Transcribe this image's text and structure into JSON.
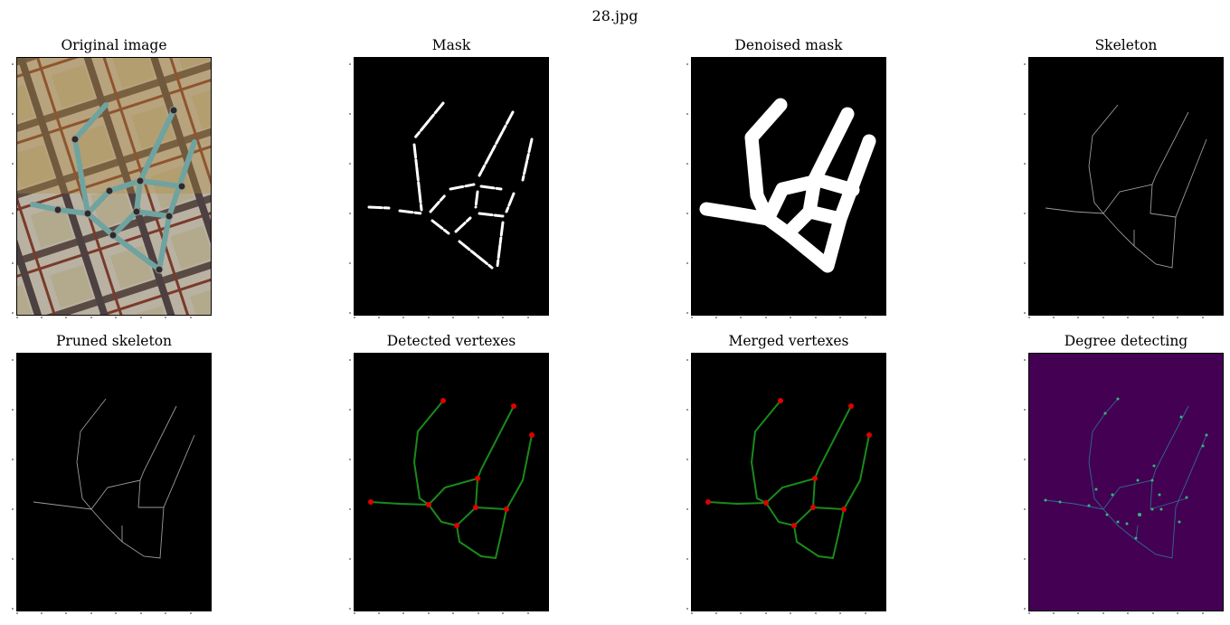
{
  "figure": {
    "title": "28.jpg",
    "panels": [
      {
        "title": "Original image",
        "kind": "photo"
      },
      {
        "title": "Mask",
        "kind": "mask"
      },
      {
        "title": "Denoised mask",
        "kind": "denoised"
      },
      {
        "title": "Skeleton",
        "kind": "skeleton"
      },
      {
        "title": "Pruned skeleton",
        "kind": "pruned"
      },
      {
        "title": "Detected vertexes",
        "kind": "detected"
      },
      {
        "title": "Merged vertexes",
        "kind": "merged"
      },
      {
        "title": "Degree detecting",
        "kind": "degree"
      }
    ]
  },
  "colors": {
    "graph_edge": "#1a8a1a",
    "vertex": "#e00000",
    "degree_background": "#440154",
    "degree_edge": "#31688e",
    "degree_node": "#35b779"
  }
}
